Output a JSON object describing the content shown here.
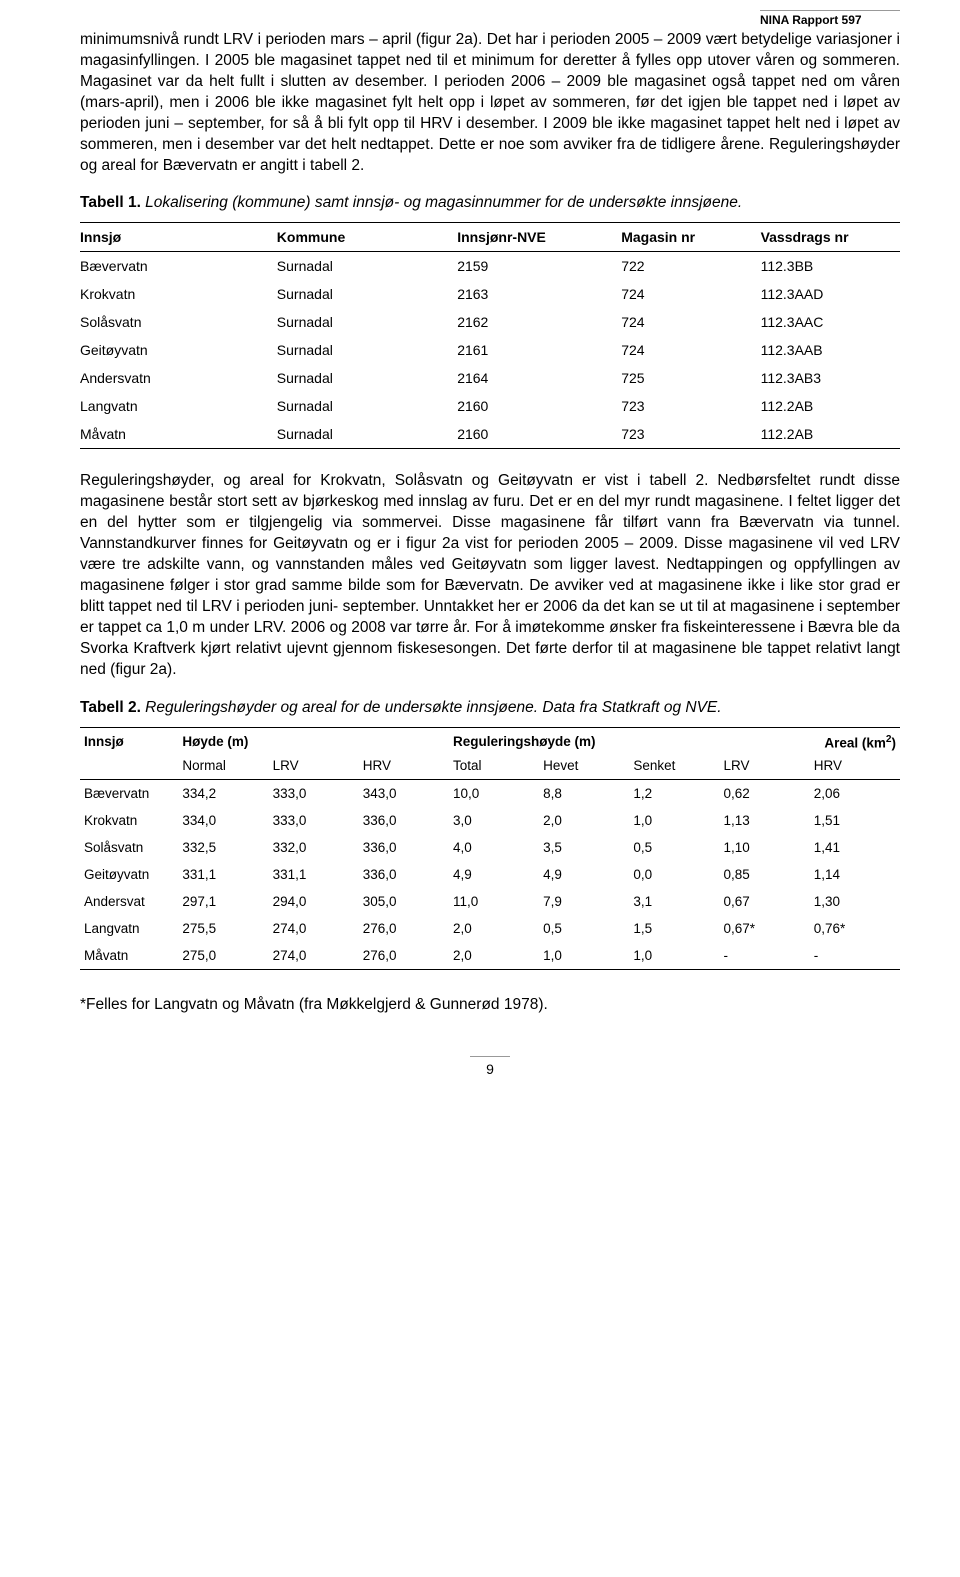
{
  "header": {
    "report_label": "NINA Rapport 597"
  },
  "paragraphs": {
    "p1": "minimumsnivå rundt LRV i perioden mars – april (figur 2a). Det har i perioden 2005 – 2009 vært betydelige variasjoner i magasinfyllingen. I 2005 ble magasinet tappet ned til et minimum for deretter å fylles opp utover våren og sommeren. Magasinet var da helt fullt i slutten av desember. I perioden 2006 – 2009 ble magasinet også tappet ned om våren (mars-april), men i 2006 ble ikke magasinet fylt helt opp i løpet av sommeren, før det igjen ble tappet ned i løpet av perioden juni – september, for så å bli fylt opp til HRV i desember. I 2009 ble ikke magasinet tappet helt ned i løpet av sommeren, men i desember var det helt nedtappet. Dette er noe som avviker fra de tidligere årene. Reguleringshøyder og areal for Bævervatn er angitt i tabell 2.",
    "t1_label": "Tabell 1.",
    "t1_caption": " Lokalisering (kommune) samt innsjø- og magasinnummer for de undersøkte innsjøene.",
    "p2": "Reguleringshøyder, og areal for Krokvatn, Solåsvatn og Geitøyvatn er vist i tabell 2. Nedbørsfeltet rundt disse magasinene består stort sett av bjørkeskog med innslag av furu. Det er en del myr rundt magasinene. I feltet ligger det en del hytter som er tilgjengelig via sommervei. Disse magasinene får tilført vann fra Bævervatn via tunnel. Vannstandkurver finnes for Geitøyvatn og er i figur 2a vist for perioden 2005 – 2009. Disse magasinene vil ved LRV være tre adskilte vann, og vannstanden måles ved Geitøyvatn som ligger lavest. Nedtappingen og oppfyllingen av magasinene følger i stor grad samme bilde som for Bævervatn. De avviker ved at magasinene ikke i like stor grad er blitt tappet ned til LRV i perioden juni- september. Unntakket her er 2006 da det kan se ut til at magasinene i september er tappet ca 1,0 m under LRV. 2006 og 2008 var tørre år. For å imøtekomme ønsker fra fiskeinteressene i Bævra ble da Svorka Kraftverk kjørt relativt ujevnt gjennom fiskesesongen. Det førte derfor til at magasinene ble tappet relativt langt ned (figur 2a).",
    "t2_label": "Tabell 2.",
    "t2_caption": " Reguleringshøyder og areal for de undersøkte innsjøene. Data fra Statkraft og NVE.",
    "footnote": "*Felles for Langvatn og Måvatn (fra Møkkelgjerd & Gunnerød 1978)."
  },
  "table1": {
    "headers": [
      "Innsjø",
      "Kommune",
      "Innsjønr-NVE",
      "Magasin nr",
      "Vassdrags nr"
    ],
    "rows": [
      [
        "Bævervatn",
        "Surnadal",
        "2159",
        "722",
        "112.3BB"
      ],
      [
        "Krokvatn",
        "Surnadal",
        "2163",
        "724",
        "112.3AAD"
      ],
      [
        "Solåsvatn",
        "Surnadal",
        "2162",
        "724",
        "112.3AAC"
      ],
      [
        "Geitøyvatn",
        "Surnadal",
        "2161",
        "724",
        "112.3AAB"
      ],
      [
        "Andersvatn",
        "Surnadal",
        "2164",
        "725",
        "112.3AB3"
      ],
      [
        "Langvatn",
        "Surnadal",
        "2160",
        "723",
        "112.2AB"
      ],
      [
        "Måvatn",
        "Surnadal",
        "2160",
        "723",
        "112.2AB"
      ]
    ],
    "col_widths": [
      "24%",
      "22%",
      "20%",
      "17%",
      "17%"
    ]
  },
  "table2": {
    "top_headers": {
      "c0": "Innsjø",
      "c1": "Høyde (m)",
      "c2": "Reguleringshøyde (m)",
      "c3_html": "Areal (km<sup>2</sup>)"
    },
    "sub_headers": [
      "",
      "Normal",
      "LRV",
      "HRV",
      "Total",
      "Hevet",
      "Senket",
      "LRV",
      "HRV"
    ],
    "rows": [
      [
        "Bævervatn",
        "334,2",
        "333,0",
        "343,0",
        "10,0",
        "8,8",
        "1,2",
        "0,62",
        "2,06"
      ],
      [
        "Krokvatn",
        "334,0",
        "333,0",
        "336,0",
        "3,0",
        "2,0",
        "1,0",
        "1,13",
        "1,51"
      ],
      [
        "Solåsvatn",
        "332,5",
        "332,0",
        "336,0",
        "4,0",
        "3,5",
        "0,5",
        "1,10",
        "1,41"
      ],
      [
        "Geitøyvatn",
        "331,1",
        "331,1",
        "336,0",
        "4,9",
        "4,9",
        "0,0",
        "0,85",
        "1,14"
      ],
      [
        "Andersvat",
        "297,1",
        "294,0",
        "305,0",
        "11,0",
        "7,9",
        "3,1",
        "0,67",
        "1,30"
      ],
      [
        "Langvatn",
        "275,5",
        "274,0",
        "276,0",
        "2,0",
        "0,5",
        "1,5",
        "0,67*",
        "0,76*"
      ],
      [
        "Måvatn",
        "275,0",
        "274,0",
        "276,0",
        "2,0",
        "1,0",
        "1,0",
        "-",
        "-"
      ]
    ],
    "col_widths": [
      "12%",
      "11%",
      "11%",
      "11%",
      "11%",
      "11%",
      "11%",
      "11%",
      "11%"
    ]
  },
  "page_number": "9"
}
